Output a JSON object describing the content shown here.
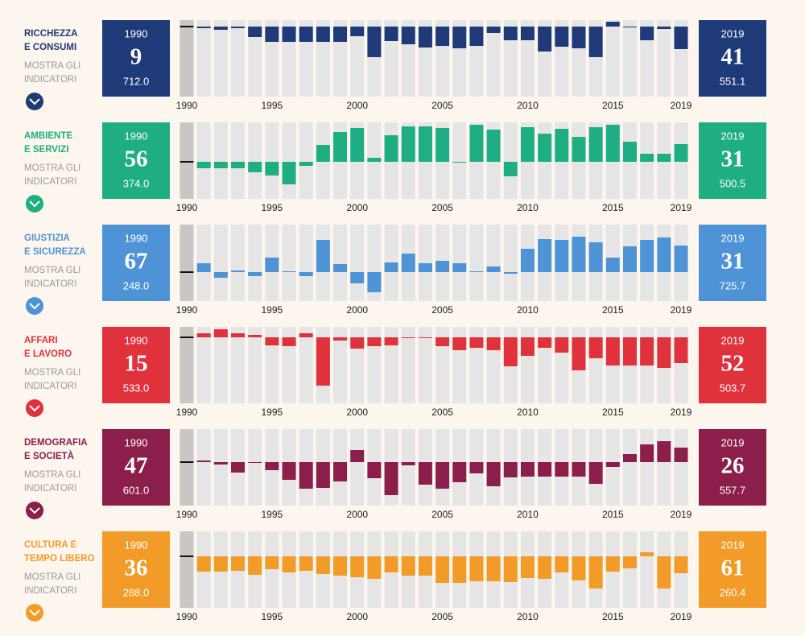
{
  "chart_data": [
    {
      "type": "bar",
      "title_lines": [
        "RICCHEZZA",
        "E CONSUMI"
      ],
      "link_lines": [
        "MOSTRA GLI",
        "INDICATORI"
      ],
      "color": "#1f3a78",
      "start": {
        "year": 1990,
        "rank": 9,
        "score": {
          "value": 712,
          "label": "712.0"
        }
      },
      "end": {
        "year": 2019,
        "rank": 41,
        "score": {
          "value": 551.1,
          "label": "551.1"
        }
      },
      "x": [
        1990,
        1991,
        1992,
        1993,
        1994,
        1995,
        1996,
        1997,
        1998,
        1999,
        2000,
        2001,
        2002,
        2003,
        2004,
        2005,
        2006,
        2007,
        2008,
        2009,
        2010,
        2011,
        2012,
        2013,
        2014,
        2015,
        2016,
        2017,
        2018,
        2019
      ],
      "values": [
        0,
        -2,
        -4,
        -2,
        -13,
        -19,
        -19,
        -19,
        -19,
        -19,
        -12,
        -38,
        -18,
        -22,
        -26,
        -24,
        -27,
        -24,
        -8,
        -17,
        -17,
        -31,
        -25,
        -27,
        -38,
        6,
        -1,
        -17,
        -3,
        -28
      ],
      "ylim": [
        -87,
        8
      ],
      "xticks": [
        1990,
        1995,
        2000,
        2005,
        2010,
        2015,
        2019
      ]
    },
    {
      "type": "bar",
      "title_lines": [
        "AMBIENTE",
        "E SERVIZI"
      ],
      "link_lines": [
        "MOSTRA GLI",
        "INDICATORI"
      ],
      "color": "#1fae82",
      "start": {
        "year": 1990,
        "rank": 56,
        "score": {
          "value": 374,
          "label": "374.0"
        }
      },
      "end": {
        "year": 2019,
        "rank": 31,
        "score": {
          "value": 500.5,
          "label": "500.5"
        }
      },
      "x": [
        1990,
        1991,
        1992,
        1993,
        1994,
        1995,
        1996,
        1997,
        1998,
        1999,
        2000,
        2001,
        2002,
        2003,
        2004,
        2005,
        2006,
        2007,
        2008,
        2009,
        2010,
        2011,
        2012,
        2013,
        2014,
        2015,
        2016,
        2017,
        2018,
        2019
      ],
      "values": [
        0,
        -8,
        -8,
        -8,
        -13,
        -17,
        -28,
        -5,
        21,
        37,
        42,
        5,
        33,
        44,
        44,
        42,
        -1,
        46,
        40,
        -18,
        43,
        35,
        41,
        31,
        43,
        46,
        25,
        10,
        10,
        22
      ],
      "ylim": [
        -46,
        49
      ],
      "xticks": [
        1990,
        1995,
        2000,
        2005,
        2010,
        2015,
        2019
      ]
    },
    {
      "type": "bar",
      "title_lines": [
        "GIUSTIZIA",
        "E SICUREZZA"
      ],
      "link_lines": [
        "MOSTRA GLI",
        "INDICATORI"
      ],
      "color": "#4e93d6",
      "start": {
        "year": 1990,
        "rank": 67,
        "score": {
          "value": 248,
          "label": "248.0"
        }
      },
      "end": {
        "year": 2019,
        "rank": 31,
        "score": {
          "value": 725.7,
          "label": "725.7"
        }
      },
      "x": [
        1990,
        1991,
        1992,
        1993,
        1994,
        1995,
        1996,
        1997,
        1998,
        1999,
        2000,
        2001,
        2002,
        2003,
        2004,
        2005,
        2006,
        2007,
        2008,
        2009,
        2010,
        2011,
        2012,
        2013,
        2014,
        2015,
        2016,
        2017,
        2018,
        2019
      ],
      "values": [
        0,
        11,
        -7,
        2,
        -5,
        18,
        1,
        -5,
        40,
        10,
        -14,
        -25,
        12,
        23,
        11,
        14,
        11,
        1,
        7,
        -2,
        29,
        41,
        40,
        44,
        37,
        18,
        32,
        40,
        43,
        33
      ],
      "ylim": [
        -36,
        59
      ],
      "xticks": [
        1990,
        1995,
        2000,
        2005,
        2010,
        2015,
        2019
      ]
    },
    {
      "type": "bar",
      "title_lines": [
        "AFFARI",
        "E LAVORO"
      ],
      "link_lines": [
        "MOSTRA GLI",
        "INDICATORI"
      ],
      "color": "#e0323c",
      "start": {
        "year": 1990,
        "rank": 15,
        "score": {
          "value": 533,
          "label": "533.0"
        }
      },
      "end": {
        "year": 2019,
        "rank": 52,
        "score": {
          "value": 503.7,
          "label": "503.7"
        }
      },
      "x": [
        1990,
        1991,
        1992,
        1993,
        1994,
        1995,
        1996,
        1997,
        1998,
        1999,
        2000,
        2001,
        2002,
        2003,
        2004,
        2005,
        2006,
        2007,
        2008,
        2009,
        2010,
        2011,
        2012,
        2013,
        2014,
        2015,
        2016,
        2017,
        2018,
        2019
      ],
      "values": [
        0,
        5,
        10,
        5,
        3,
        -10,
        -11,
        5,
        -60,
        -4,
        -14,
        -11,
        -10,
        -1,
        0,
        -11,
        -16,
        -13,
        -16,
        -36,
        -23,
        -13,
        -19,
        -41,
        -26,
        -35,
        -35,
        -35,
        -38,
        -32
      ],
      "ylim": [
        -82,
        13
      ],
      "xticks": [
        1990,
        1995,
        2000,
        2005,
        2010,
        2015,
        2019
      ]
    },
    {
      "type": "bar",
      "title_lines": [
        "DEMOGRAFIA",
        "E SOCIETÀ"
      ],
      "link_lines": [
        "MOSTRA GLI",
        "INDICATORI"
      ],
      "color": "#8b1e4a",
      "start": {
        "year": 1990,
        "rank": 47,
        "score": {
          "value": 601,
          "label": "601.0"
        }
      },
      "end": {
        "year": 2019,
        "rank": 26,
        "score": {
          "value": 557.7,
          "label": "557.7"
        }
      },
      "x": [
        1990,
        1991,
        1992,
        1993,
        1994,
        1995,
        1996,
        1997,
        1998,
        1999,
        2000,
        2001,
        2002,
        2003,
        2004,
        2005,
        2006,
        2007,
        2008,
        2009,
        2010,
        2011,
        2012,
        2013,
        2014,
        2015,
        2016,
        2017,
        2018,
        2019
      ],
      "values": [
        0,
        2,
        -3,
        -13,
        -1,
        -10,
        -22,
        -33,
        -32,
        -24,
        15,
        -20,
        -41,
        -4,
        -28,
        -33,
        -25,
        -14,
        -30,
        -19,
        -18,
        -18,
        -18,
        -18,
        -27,
        -6,
        10,
        22,
        26,
        18
      ],
      "ylim": [
        -54,
        41
      ],
      "xticks": [
        1990,
        1995,
        2000,
        2005,
        2010,
        2015,
        2019
      ]
    },
    {
      "type": "bar",
      "title_lines": [
        "CULTURA E",
        "TEMPO LIBERO"
      ],
      "link_lines": [
        "MOSTRA GLI",
        "INDICATORI"
      ],
      "color": "#f29b28",
      "start": {
        "year": 1990,
        "rank": 36,
        "score": {
          "value": 288,
          "label": "288.0"
        }
      },
      "end": {
        "year": 2019,
        "rank": 61,
        "score": {
          "value": 260.4,
          "label": "260.4"
        }
      },
      "x": [
        1990,
        1991,
        1992,
        1993,
        1994,
        1995,
        1996,
        1997,
        1998,
        1999,
        2000,
        2001,
        2002,
        2003,
        2004,
        2005,
        2006,
        2007,
        2008,
        2009,
        2010,
        2011,
        2012,
        2013,
        2014,
        2015,
        2016,
        2017,
        2018,
        2019
      ],
      "values": [
        0,
        -19,
        -19,
        -18,
        -23,
        -16,
        -20,
        -18,
        -22,
        -24,
        -26,
        -28,
        -20,
        -24,
        -24,
        -33,
        -33,
        -31,
        -31,
        -32,
        -27,
        -28,
        -20,
        -30,
        -40,
        -19,
        -15,
        5,
        -40,
        -21
      ],
      "ylim": [
        -64,
        31
      ],
      "xticks": [
        1990,
        1995,
        2000,
        2005,
        2010,
        2015,
        2019
      ]
    }
  ]
}
